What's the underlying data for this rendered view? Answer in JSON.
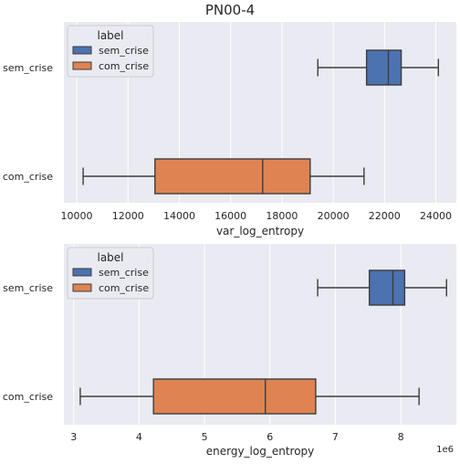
{
  "figure": {
    "title": "PN00-4"
  },
  "chart_data": [
    {
      "type": "boxplot",
      "orientation": "horizontal",
      "xlabel": "var_log_entropy",
      "xlim": [
        9500,
        24800
      ],
      "xticks": [
        10000,
        12000,
        14000,
        16000,
        18000,
        20000,
        22000,
        24000
      ],
      "xtick_labels": [
        "10000",
        "12000",
        "14000",
        "16000",
        "18000",
        "20000",
        "22000",
        "24000"
      ],
      "offset_label": "",
      "categories": [
        "sem_crise",
        "com_crise"
      ],
      "legend": {
        "title": "label",
        "placement": "upper left",
        "entries": [
          "sem_crise",
          "com_crise"
        ]
      },
      "grid": true,
      "series": [
        {
          "name": "sem_crise",
          "color": "#4c72b0",
          "whisker_low": 19400,
          "q1": 21300,
          "median": 22150,
          "q3": 22650,
          "whisker_high": 24100
        },
        {
          "name": "com_crise",
          "color": "#dd8452",
          "whisker_low": 10250,
          "q1": 13050,
          "median": 17250,
          "q3": 19100,
          "whisker_high": 21200
        }
      ]
    },
    {
      "type": "boxplot",
      "orientation": "horizontal",
      "xlabel": "energy_log_entropy",
      "xlim": [
        2.85,
        8.85
      ],
      "xticks": [
        3,
        4,
        5,
        6,
        7,
        8
      ],
      "xtick_labels": [
        "3",
        "4",
        "5",
        "6",
        "7",
        "8"
      ],
      "offset_label": "1e6",
      "categories": [
        "sem_crise",
        "com_crise"
      ],
      "legend": {
        "title": "label",
        "placement": "upper left",
        "entries": [
          "sem_crise",
          "com_crise"
        ]
      },
      "grid": true,
      "series": [
        {
          "name": "sem_crise",
          "color": "#4c72b0",
          "whisker_low": 6.73,
          "q1": 7.52,
          "median": 7.88,
          "q3": 8.06,
          "whisker_high": 8.7
        },
        {
          "name": "com_crise",
          "color": "#dd8452",
          "whisker_low": 3.1,
          "q1": 4.22,
          "median": 5.93,
          "q3": 6.7,
          "whisker_high": 8.28
        }
      ]
    }
  ]
}
